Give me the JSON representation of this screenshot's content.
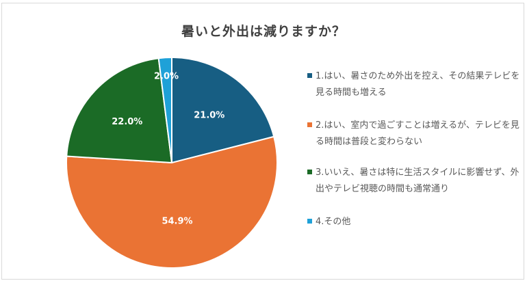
{
  "chart_data": {
    "type": "pie",
    "title": "暑いと外出は減りますか？",
    "start_angle_deg": 0,
    "direction": "clockwise",
    "slices": [
      {
        "label": "1.はい、暑さのため外出を控え、その結果テレビを見る時間も増える",
        "value": 21.0,
        "display": "21.0%",
        "color": "#175e83"
      },
      {
        "label": "2.はい、室内で過ごすことは増えるが、テレビを見る時間は普段と変わらない",
        "value": 54.9,
        "display": "54.9%",
        "color": "#ea7334"
      },
      {
        "label": "3.いいえ、暑さは特に生活スタイルに影響せず、外出やテレビ視聴の時間も通常通り",
        "value": 22.0,
        "display": "22.0%",
        "color": "#1b6b26"
      },
      {
        "label": "4.その他",
        "value": 2.0,
        "display": "2.0%",
        "color": "#1fa1d8"
      }
    ],
    "legend": {
      "position": "right"
    }
  }
}
